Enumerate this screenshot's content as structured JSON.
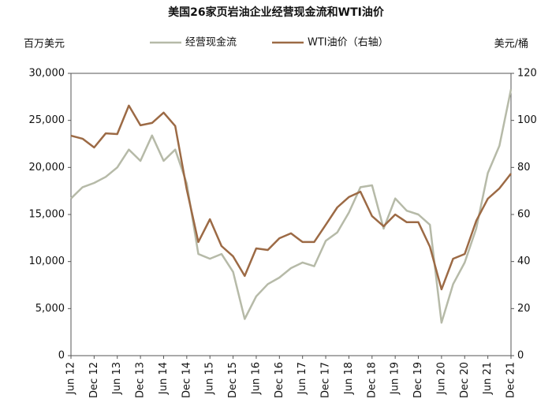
{
  "chart_data": {
    "type": "line",
    "title": "美国26家页岩油企业经营现金流和WTI油价",
    "y_label": "百万美元",
    "y2_label": "美元/桶",
    "categories": [
      "Jun 12",
      null,
      "Dec 12",
      null,
      "Jun 13",
      null,
      "Dec 13",
      null,
      "Jun 14",
      null,
      "Dec 14",
      null,
      "Jun 15",
      null,
      "Dec 15",
      null,
      "Jun 16",
      null,
      "Dec 16",
      null,
      "Jun 17",
      null,
      "Dec 17",
      null,
      "Jun 18",
      null,
      "Dec 18",
      null,
      "Jun 19",
      null,
      "Dec 19",
      null,
      "Jun 20",
      null,
      "Dec 20",
      null,
      "Jun 21",
      null,
      "Dec 21"
    ],
    "series": [
      {
        "name": "经营现金流",
        "color": "#b6baa8",
        "values": [
          16700,
          17900,
          18350,
          19000,
          20000,
          21900,
          20700,
          23400,
          20700,
          21900,
          18300,
          10800,
          10300,
          10800,
          8900,
          3900,
          6300,
          7600,
          8300,
          9300,
          9900,
          9500,
          12200,
          13100,
          15200,
          17900,
          18100,
          13500,
          16700,
          15400,
          15000,
          13900,
          3500,
          7600,
          9900,
          13500,
          19400,
          22300,
          28300
        ]
      },
      {
        "name": "WTI油价（右轴）",
        "color": "#9c6a45",
        "axis": "y2",
        "values": [
          93.5,
          92.2,
          88.5,
          94.5,
          94.2,
          106.3,
          97.9,
          98.9,
          103.3,
          97.6,
          70.7,
          48.3,
          58.0,
          46.6,
          42.2,
          33.9,
          45.6,
          44.9,
          49.9,
          52.0,
          48.3,
          48.3,
          55.6,
          63.0,
          67.4,
          69.7,
          59.3,
          55.0,
          60.0,
          56.7,
          56.7,
          46.3,
          28.2,
          41.2,
          43.2,
          57.3,
          66.7,
          71.1,
          77.4
        ]
      }
    ],
    "ylim": [
      0,
      30000
    ],
    "yticks": [
      0,
      {
        "value": 5000,
        "label": "5,000"
      },
      {
        "value": 10000,
        "label": "10,000"
      },
      {
        "value": 15000,
        "label": "15,000"
      },
      {
        "value": 20000,
        "label": "20,000"
      },
      {
        "value": 25000,
        "label": "25,000"
      },
      {
        "value": 30000,
        "label": "30,000"
      }
    ],
    "y2lim": [
      0,
      120
    ],
    "y2ticks": [
      0,
      20,
      40,
      60,
      80,
      100,
      120
    ],
    "legend": "top"
  }
}
